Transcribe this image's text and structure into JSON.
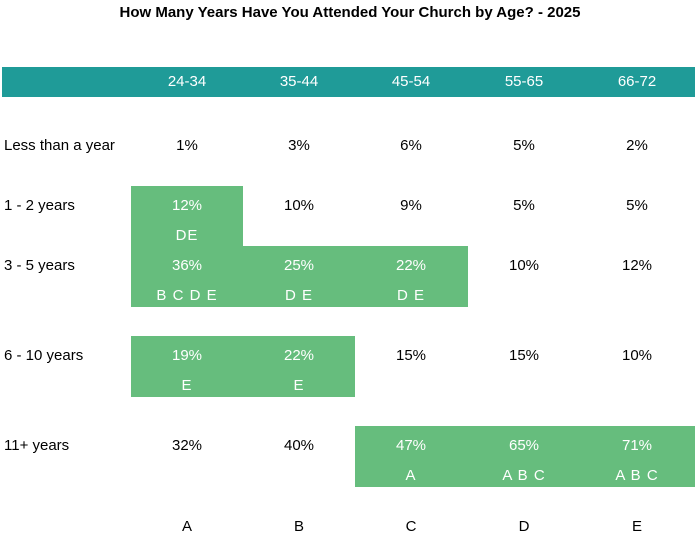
{
  "title": "How Many Years Have You Attended Your Church by Age? - 2025",
  "colors": {
    "header": "#1f9b98",
    "highlight": "#66bd7d",
    "highlight_text": "#ffffff"
  },
  "chart_data": {
    "type": "table",
    "title": "How Many Years Have You Attended Your Church by Age? - 2025",
    "columns": [
      "24-34",
      "35-44",
      "45-54",
      "55-65",
      "66-72"
    ],
    "column_letters": [
      "A",
      "B",
      "C",
      "D",
      "E"
    ],
    "rows": [
      {
        "label": "Less than a year",
        "values": [
          "1%",
          "3%",
          "6%",
          "5%",
          "2%"
        ],
        "sig": [
          "",
          "",
          "",
          "",
          ""
        ],
        "highlight": [
          false,
          false,
          false,
          false,
          false
        ]
      },
      {
        "label": "1 - 2 years",
        "values": [
          "12%",
          "10%",
          "9%",
          "5%",
          "5%"
        ],
        "sig": [
          "DE",
          "",
          "",
          "",
          ""
        ],
        "highlight": [
          true,
          false,
          false,
          false,
          false
        ]
      },
      {
        "label": "3 - 5 years",
        "values": [
          "36%",
          "25%",
          "22%",
          "10%",
          "12%"
        ],
        "sig": [
          "B C D E",
          "D E",
          "D E",
          "",
          ""
        ],
        "highlight": [
          true,
          true,
          true,
          false,
          false
        ]
      },
      {
        "label": "6 - 10 years",
        "values": [
          "19%",
          "22%",
          "15%",
          "15%",
          "10%"
        ],
        "sig": [
          "E",
          "E",
          "",
          "",
          ""
        ],
        "highlight": [
          true,
          true,
          false,
          false,
          false
        ]
      },
      {
        "label": "11+ years",
        "values": [
          "32%",
          "40%",
          "47%",
          "65%",
          "71%"
        ],
        "sig": [
          "",
          "",
          "A",
          "A B C",
          "A B C"
        ],
        "highlight": [
          false,
          false,
          true,
          true,
          true
        ]
      }
    ]
  }
}
